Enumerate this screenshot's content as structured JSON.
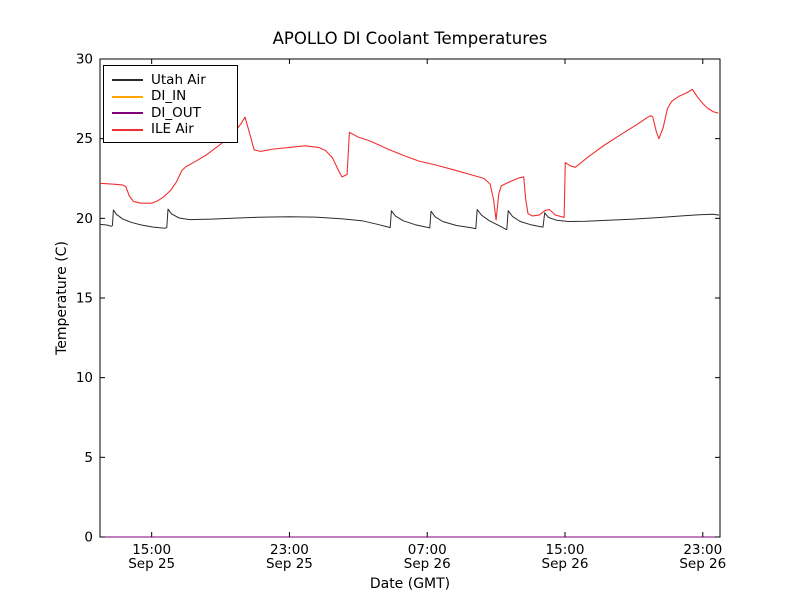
{
  "chart_data": {
    "type": "line",
    "title": "APOLLO DI Coolant Temperatures",
    "xlabel": "Date (GMT)",
    "ylabel": "Temperature (C)",
    "xlim": [
      0,
      36
    ],
    "ylim": [
      0,
      30
    ],
    "x_axis_note": "x values are hours after Sep 25 12:00 GMT",
    "grid": false,
    "legend_position": "upper left",
    "background": "#ffffff",
    "axis_color": "#000000",
    "y_ticks": [
      0,
      5,
      10,
      15,
      20,
      25,
      30
    ],
    "x_ticks": [
      {
        "hour": 3,
        "time": "15:00",
        "date": "Sep 25"
      },
      {
        "hour": 11,
        "time": "23:00",
        "date": "Sep 25"
      },
      {
        "hour": 19,
        "time": "07:00",
        "date": "Sep 26"
      },
      {
        "hour": 27,
        "time": "15:00",
        "date": "Sep 26"
      },
      {
        "hour": 35,
        "time": "23:00",
        "date": "Sep 26"
      }
    ],
    "series": [
      {
        "name": "Utah Air",
        "color": "#2b2b2b",
        "width": 1,
        "points": [
          [
            0,
            19.62
          ],
          [
            0.4,
            19.58
          ],
          [
            0.65,
            19.5
          ],
          [
            0.72,
            19.55
          ],
          [
            0.78,
            20.52
          ],
          [
            0.95,
            20.25
          ],
          [
            1.3,
            19.97
          ],
          [
            1.8,
            19.75
          ],
          [
            2.4,
            19.58
          ],
          [
            3.1,
            19.45
          ],
          [
            3.75,
            19.38
          ],
          [
            3.88,
            19.42
          ],
          [
            3.95,
            20.58
          ],
          [
            4.15,
            20.28
          ],
          [
            4.6,
            20.02
          ],
          [
            5.2,
            19.92
          ],
          [
            6.5,
            19.95
          ],
          [
            8,
            20.02
          ],
          [
            9.5,
            20.08
          ],
          [
            11,
            20.1
          ],
          [
            12.5,
            20.08
          ],
          [
            14,
            19.98
          ],
          [
            15.2,
            19.85
          ],
          [
            16.2,
            19.6
          ],
          [
            16.75,
            19.45
          ],
          [
            16.85,
            19.42
          ],
          [
            16.92,
            20.48
          ],
          [
            17.15,
            20.15
          ],
          [
            17.6,
            19.85
          ],
          [
            18.3,
            19.6
          ],
          [
            18.95,
            19.45
          ],
          [
            19.15,
            19.4
          ],
          [
            19.22,
            20.45
          ],
          [
            19.45,
            20.1
          ],
          [
            19.9,
            19.8
          ],
          [
            20.7,
            19.55
          ],
          [
            21.6,
            19.4
          ],
          [
            21.82,
            19.35
          ],
          [
            21.9,
            20.55
          ],
          [
            22.15,
            20.2
          ],
          [
            22.6,
            19.85
          ],
          [
            23.25,
            19.5
          ],
          [
            23.55,
            19.32
          ],
          [
            23.62,
            19.3
          ],
          [
            23.7,
            20.48
          ],
          [
            23.95,
            20.12
          ],
          [
            24.4,
            19.8
          ],
          [
            25.0,
            19.6
          ],
          [
            25.6,
            19.47
          ],
          [
            25.72,
            19.45
          ],
          [
            25.82,
            20.35
          ],
          [
            26.05,
            20.05
          ],
          [
            26.5,
            19.88
          ],
          [
            27.2,
            19.8
          ],
          [
            28.2,
            19.82
          ],
          [
            29.5,
            19.88
          ],
          [
            31,
            19.95
          ],
          [
            32.5,
            20.05
          ],
          [
            33.8,
            20.15
          ],
          [
            34.8,
            20.22
          ],
          [
            35.6,
            20.25
          ],
          [
            35.95,
            20.2
          ]
        ]
      },
      {
        "name": "DI_IN",
        "color": "#ffa500",
        "width": 1,
        "points": [
          [
            0,
            0
          ],
          [
            36,
            0
          ]
        ]
      },
      {
        "name": "DI_OUT",
        "color": "#800080",
        "width": 1,
        "points": [
          [
            0,
            0
          ],
          [
            36,
            0
          ]
        ]
      },
      {
        "name": "ILE Air",
        "color": "#f03030",
        "width": 1.1,
        "points": [
          [
            0,
            22.2
          ],
          [
            0.7,
            22.15
          ],
          [
            1.3,
            22.1
          ],
          [
            1.5,
            22.0
          ],
          [
            1.7,
            21.4
          ],
          [
            1.95,
            21.05
          ],
          [
            2.4,
            20.95
          ],
          [
            3.0,
            20.95
          ],
          [
            3.35,
            21.1
          ],
          [
            3.7,
            21.35
          ],
          [
            4.1,
            21.75
          ],
          [
            4.45,
            22.3
          ],
          [
            4.75,
            23.0
          ],
          [
            5.0,
            23.25
          ],
          [
            5.5,
            23.55
          ],
          [
            6.2,
            24.0
          ],
          [
            7.0,
            24.65
          ],
          [
            7.8,
            25.4
          ],
          [
            8.2,
            25.95
          ],
          [
            8.42,
            26.35
          ],
          [
            8.7,
            25.3
          ],
          [
            8.95,
            24.3
          ],
          [
            9.3,
            24.2
          ],
          [
            10.1,
            24.35
          ],
          [
            11.0,
            24.45
          ],
          [
            11.9,
            24.55
          ],
          [
            12.7,
            24.45
          ],
          [
            13.1,
            24.25
          ],
          [
            13.5,
            23.8
          ],
          [
            13.85,
            23.0
          ],
          [
            14.05,
            22.6
          ],
          [
            14.35,
            22.75
          ],
          [
            14.48,
            25.4
          ],
          [
            15.0,
            25.1
          ],
          [
            15.7,
            24.85
          ],
          [
            16.6,
            24.4
          ],
          [
            17.5,
            24.0
          ],
          [
            18.5,
            23.6
          ],
          [
            19.5,
            23.35
          ],
          [
            20.5,
            23.05
          ],
          [
            21.5,
            22.75
          ],
          [
            22.3,
            22.5
          ],
          [
            22.65,
            22.15
          ],
          [
            22.85,
            21.2
          ],
          [
            23.0,
            19.9
          ],
          [
            23.15,
            21.5
          ],
          [
            23.3,
            22.05
          ],
          [
            23.8,
            22.3
          ],
          [
            24.35,
            22.55
          ],
          [
            24.6,
            22.6
          ],
          [
            24.72,
            21.2
          ],
          [
            24.85,
            20.3
          ],
          [
            25.1,
            20.15
          ],
          [
            25.5,
            20.2
          ],
          [
            25.85,
            20.5
          ],
          [
            26.1,
            20.55
          ],
          [
            26.45,
            20.2
          ],
          [
            26.8,
            20.1
          ],
          [
            26.95,
            20.05
          ],
          [
            27.02,
            23.5
          ],
          [
            27.3,
            23.3
          ],
          [
            27.6,
            23.2
          ],
          [
            28.4,
            23.9
          ],
          [
            29.3,
            24.6
          ],
          [
            30.3,
            25.3
          ],
          [
            31.2,
            25.9
          ],
          [
            31.8,
            26.35
          ],
          [
            32.0,
            26.45
          ],
          [
            32.1,
            26.35
          ],
          [
            32.3,
            25.45
          ],
          [
            32.45,
            25.0
          ],
          [
            32.7,
            25.7
          ],
          [
            32.95,
            26.9
          ],
          [
            33.2,
            27.35
          ],
          [
            33.6,
            27.65
          ],
          [
            34.1,
            27.9
          ],
          [
            34.4,
            28.1
          ],
          [
            34.7,
            27.6
          ],
          [
            35.0,
            27.2
          ],
          [
            35.3,
            26.9
          ],
          [
            35.6,
            26.7
          ],
          [
            35.9,
            26.6
          ]
        ]
      }
    ]
  }
}
